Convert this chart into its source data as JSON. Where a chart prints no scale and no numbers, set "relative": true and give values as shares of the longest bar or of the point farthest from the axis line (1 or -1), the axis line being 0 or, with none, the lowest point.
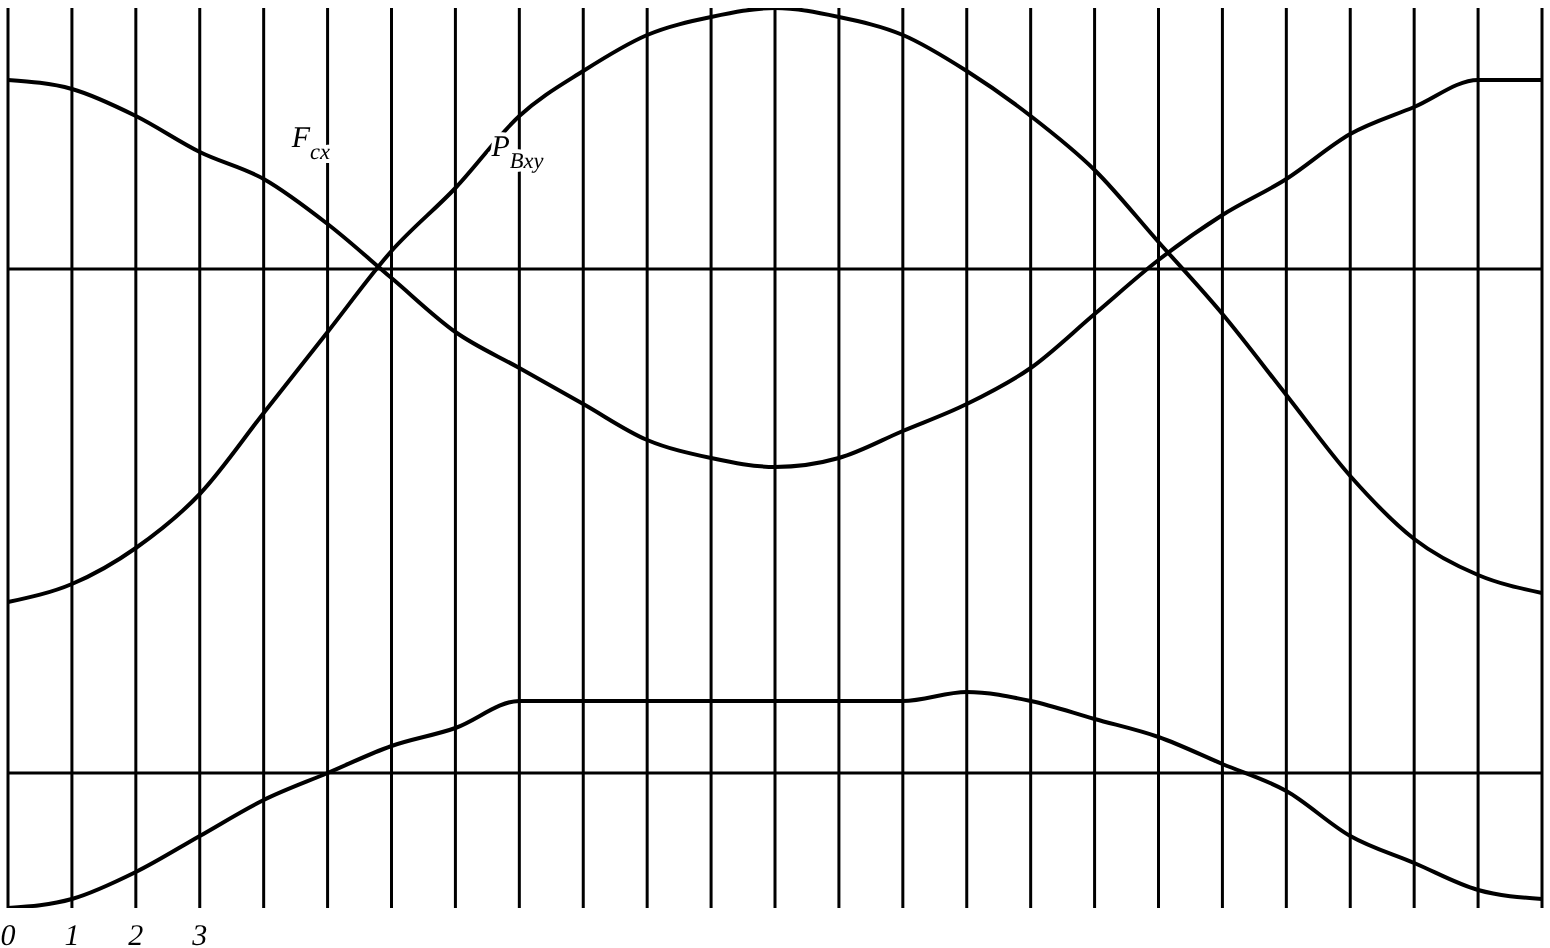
{
  "chart_data": {
    "type": "line",
    "relative": true,
    "grid": "x",
    "marker": "none",
    "line_style": "solid",
    "categories": [
      "0",
      "1",
      "2",
      "3",
      null,
      null,
      null,
      null,
      null,
      null,
      null,
      null,
      null,
      null,
      null,
      null,
      null,
      null,
      null,
      null,
      null,
      null,
      null,
      null,
      null
    ],
    "series": [
      {
        "name": "F$_{cx}$",
        "color": "#000000",
        "values": [
          0.92,
          0.91,
          0.88,
          0.84,
          0.81,
          0.76,
          0.7,
          0.64,
          0.6,
          0.56,
          0.52,
          0.5,
          0.49,
          0.5,
          0.53,
          0.56,
          0.6,
          0.66,
          0.72,
          0.77,
          0.81,
          0.86,
          0.89,
          0.92,
          0.92
        ]
      },
      {
        "name": "P$_{Bxy}$",
        "color": "#000000",
        "values": [
          0.34,
          0.36,
          0.4,
          0.46,
          0.55,
          0.64,
          0.73,
          0.8,
          0.88,
          0.93,
          0.97,
          0.99,
          1.0,
          0.99,
          0.97,
          0.93,
          0.88,
          0.82,
          0.74,
          0.66,
          0.57,
          0.48,
          0.41,
          0.37,
          0.35
        ]
      },
      {
        "color": "#000000",
        "values": [
          0.0,
          0.01,
          0.04,
          0.08,
          0.12,
          0.15,
          0.18,
          0.2,
          0.23,
          0.23,
          0.23,
          0.23,
          0.23,
          0.23,
          0.23,
          0.24,
          0.23,
          0.21,
          0.19,
          0.16,
          0.13,
          0.08,
          0.05,
          0.02,
          0.01
        ]
      }
    ],
    "ref_lines": [
      {
        "axis": "y",
        "value": 0.71,
        "color": "#000000"
      },
      {
        "axis": "y",
        "value": 0.15,
        "color": "#000000"
      }
    ]
  }
}
